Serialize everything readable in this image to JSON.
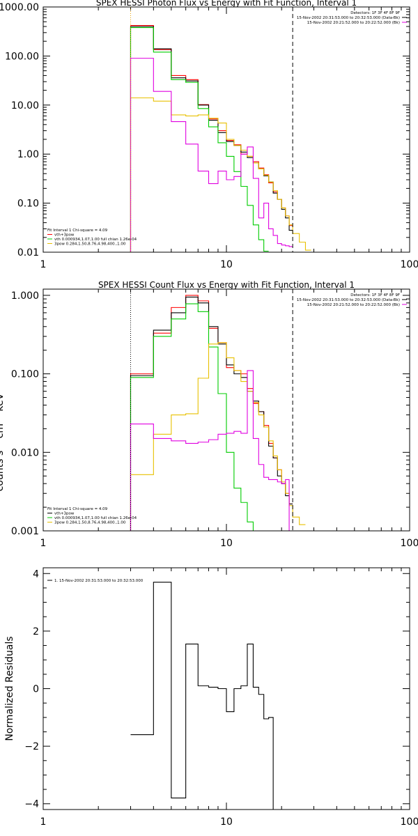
{
  "chart_data": [
    {
      "type": "line",
      "title": "SPEX HESSI Photon Flux vs Energy with Fit Function, Interval 1",
      "xscale": "log",
      "yscale": "log",
      "xlim": [
        1,
        100
      ],
      "ylim": [
        0.01,
        1000
      ],
      "xticks": [
        {
          "v": 1,
          "label": "1"
        },
        {
          "v": 10,
          "label": "10"
        },
        {
          "v": 100,
          "label": "100"
        }
      ],
      "yticks": [
        {
          "v": 1000,
          "label": "1000.00"
        },
        {
          "v": 100,
          "label": "100.00"
        },
        {
          "v": 10,
          "label": "10.00"
        },
        {
          "v": 1,
          "label": "1.00"
        },
        {
          "v": 0.1,
          "label": "0.10"
        },
        {
          "v": 0.01,
          "label": "0.01"
        }
      ],
      "header_lines": [
        {
          "text": "Detectors: 1F 3F 4F 8F 9F",
          "color": ""
        },
        {
          "text": "15-Nov-2002 20:31:53.000 to 20:32:53.000 (Data-Bk)",
          "color": "#000000"
        },
        {
          "text": "15-Nov-2002 20:21:52.000 to 20:22:52.000 (Bk)",
          "color": "#e000e0"
        }
      ],
      "legend": [
        {
          "text": "Fit Interval 1    Chi-square = 4.09",
          "color": ""
        },
        {
          "text": "vth+3pow",
          "color": "#ff0000"
        },
        {
          "text": "vth 0.000934,1.07,1.00  full chian 1.26e-04",
          "color": "#00cc00"
        },
        {
          "text": "3pow 0.284,1.50,8.76,4.98,400.,1.00",
          "color": "#e8c000"
        }
      ],
      "vlines": [
        {
          "x": 3.0,
          "style": "dotted",
          "color": "#e8a000"
        },
        {
          "x": 23.0,
          "style": "dashed",
          "color": "#000000"
        }
      ],
      "edges": [
        3,
        4,
        5,
        6,
        7,
        8,
        9,
        10,
        11,
        12,
        13,
        14,
        15,
        16,
        17,
        18,
        19,
        20,
        21,
        22,
        23,
        25,
        27,
        29
      ],
      "series": [
        {
          "name": "vth+3pow",
          "color": "#ff0000",
          "values": [
            420,
            135,
            40,
            33,
            10.2,
            5.2,
            3.0,
            1.9,
            1.55,
            1.0,
            0.9,
            0.7,
            0.52,
            0.38,
            0.26,
            0.17,
            0.12,
            0.08,
            0.055,
            0.035
          ]
        },
        {
          "name": "",
          "color": "#000000",
          "values": [
            400,
            140,
            36,
            31,
            10.0,
            4.9,
            2.75,
            1.8,
            1.5,
            1.1,
            0.85,
            0.66,
            0.5,
            0.36,
            0.27,
            0.16,
            0.12,
            0.075,
            0.05,
            0.028
          ]
        },
        {
          "name": "vth",
          "color": "#00cc00",
          "values": [
            380,
            120,
            33,
            29,
            8.5,
            3.6,
            1.7,
            0.9,
            0.44,
            0.22,
            0.09,
            0.036,
            0.018,
            0.0105
          ]
        },
        {
          "name": "3pow",
          "color": "#e8c000",
          "values": [
            14,
            12,
            6.3,
            6.0,
            6.3,
            5.4,
            4.3,
            2.0,
            1.5,
            1.2,
            0.9,
            0.66,
            0.5,
            0.37,
            0.27,
            0.18,
            0.12,
            0.08,
            0.055,
            0.036,
            0.024,
            0.016,
            0.011
          ]
        },
        {
          "name": "",
          "color": "#e000e0",
          "values": [
            90,
            19,
            4.6,
            1.6,
            0.45,
            0.25,
            0.45,
            0.3,
            0.35,
            1.0,
            1.4,
            0.32,
            0.05,
            0.1,
            0.03,
            0.022,
            0.015,
            0.014,
            0.0135,
            0.013
          ]
        }
      ]
    },
    {
      "type": "line",
      "title": "SPEX HESSI Count Flux vs Energy with Fit Function, Interval 1",
      "xscale": "log",
      "yscale": "log",
      "xlim": [
        1,
        100
      ],
      "ylim": [
        0.001,
        1.2
      ],
      "xticks": [
        {
          "v": 1,
          "label": "1"
        },
        {
          "v": 10,
          "label": "10"
        },
        {
          "v": 100,
          "label": "100"
        }
      ],
      "yticks": [
        {
          "v": 1,
          "label": "1.000"
        },
        {
          "v": 0.1,
          "label": "0.100"
        },
        {
          "v": 0.01,
          "label": "0.010"
        },
        {
          "v": 0.001,
          "label": "0.001"
        }
      ],
      "ylabel_fragment": "counts s⁻¹ cm⁻² keV⁻¹",
      "header_lines": [
        {
          "text": "Detectors: 1F 3F 4F 8F 9F",
          "color": ""
        },
        {
          "text": "15-Nov-2002 20:31:53.000 to 20:32:53.000 (Data-Bk)",
          "color": "#000000"
        },
        {
          "text": "15-Nov-2002 20:21:52.000 to 20:22:52.000 (Bk)",
          "color": "#e000e0"
        }
      ],
      "legend": [
        {
          "text": "Fit Interval 1    Chi-square = 4.09",
          "color": ""
        },
        {
          "text": "vth+3pow",
          "color": "#000000"
        },
        {
          "text": "vth 0.000934,1.07,1.00  full chian 1.26e-04",
          "color": "#00cc00"
        },
        {
          "text": "3pow 0.284,1.50,8.76,4.98,400.,1.00",
          "color": "#e8c000"
        }
      ],
      "vlines": [
        {
          "x": 3.0,
          "style": "dotted",
          "color": "#000000"
        },
        {
          "x": 23.0,
          "style": "dashed",
          "color": "#000000"
        }
      ],
      "edges": [
        3,
        4,
        5,
        6,
        7,
        8,
        9,
        10,
        11,
        12,
        13,
        14,
        15,
        16,
        17,
        18,
        19,
        20,
        21,
        22,
        23,
        25,
        27,
        29
      ],
      "series": [
        {
          "name": "",
          "color": "#ff0000",
          "values": [
            0.1,
            0.33,
            0.7,
            1.0,
            0.85,
            0.38,
            0.25,
            0.12,
            0.11,
            0.1,
            0.065,
            0.042,
            0.033,
            0.022,
            0.013,
            0.0085,
            0.006,
            0.004,
            0.003,
            0.0022
          ]
        },
        {
          "name": "vth+3pow",
          "color": "#000000",
          "values": [
            0.095,
            0.36,
            0.6,
            0.95,
            0.8,
            0.4,
            0.24,
            0.13,
            0.1,
            0.09,
            0.06,
            0.045,
            0.033,
            0.021,
            0.012,
            0.0085,
            0.005,
            0.004,
            0.0028,
            0.0022
          ]
        },
        {
          "name": "vth",
          "color": "#00cc00",
          "values": [
            0.09,
            0.3,
            0.5,
            0.78,
            0.62,
            0.22,
            0.056,
            0.01,
            0.0035,
            0.0023,
            0.0013,
            0.001
          ]
        },
        {
          "name": "3pow",
          "color": "#e8c000",
          "values": [
            0.0052,
            0.017,
            0.03,
            0.031,
            0.088,
            0.24,
            0.25,
            0.16,
            0.11,
            0.08,
            0.06,
            0.043,
            0.03,
            0.021,
            0.014,
            0.009,
            0.006,
            0.0042,
            0.003,
            0.0021,
            0.0015,
            0.0012
          ]
        },
        {
          "name": "",
          "color": "#e000e0",
          "values": [
            0.023,
            0.015,
            0.014,
            0.013,
            0.0135,
            0.0145,
            0.017,
            0.0175,
            0.0185,
            0.0175,
            0.11,
            0.015,
            0.007,
            0.0048,
            0.0045,
            0.0045,
            0.0042,
            0.004,
            0.0045,
            0.001
          ]
        }
      ]
    },
    {
      "type": "line",
      "title": "",
      "xscale": "log",
      "yscale": "linear",
      "xlim": [
        1,
        100
      ],
      "ylim": [
        -4.2,
        4.2
      ],
      "ylabel": "Normalized Residuals",
      "xticks": [
        {
          "v": 1,
          "label": "1"
        },
        {
          "v": 10,
          "label": "10"
        },
        {
          "v": 100,
          "label": "100"
        }
      ],
      "yticks": [
        {
          "v": 4,
          "label": "4"
        },
        {
          "v": 2,
          "label": "2"
        },
        {
          "v": 0,
          "label": "0"
        },
        {
          "v": -2,
          "label": "−2"
        },
        {
          "v": -4,
          "label": "−4"
        }
      ],
      "legend": [
        {
          "text": "1. 15-Nov-2002 20:31:53.000 to 20:32:53.000",
          "color": "#000000"
        }
      ],
      "edges": [
        3,
        4,
        5,
        6,
        7,
        8,
        9,
        10,
        11,
        12,
        13,
        14,
        15,
        16,
        17,
        18,
        19,
        20,
        21,
        22,
        23
      ],
      "series": [
        {
          "name": "1. 15-Nov-2002 20:31:53.000 to 20:32:53.000",
          "color": "#000000",
          "values": [
            -1.6,
            3.7,
            -3.8,
            1.55,
            0.1,
            0.05,
            0.0,
            -0.8,
            0.0,
            0.1,
            1.55,
            0.05,
            -0.2,
            -1.05,
            -1.0,
            -4.2,
            -4.2,
            -4.2,
            -4.2,
            -4.2
          ]
        }
      ]
    }
  ]
}
